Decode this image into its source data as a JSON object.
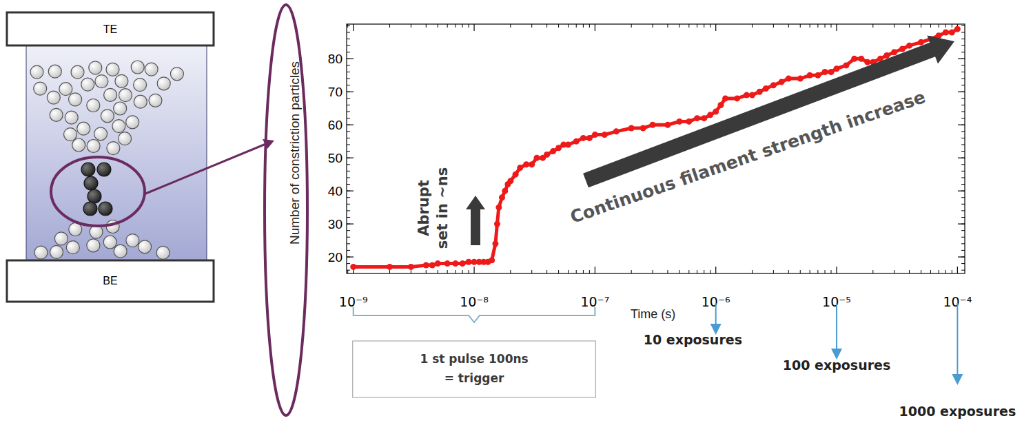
{
  "chart_data": {
    "type": "line",
    "marker": "circle",
    "color": "#ee1a1a",
    "y_label": "Number of constriction particles",
    "x_label": "Time (s)",
    "log": "x",
    "xlim": [
      8.8e-10,
      0.000115
    ],
    "ylim": [
      15,
      90.5
    ],
    "xticks": [
      {
        "value": 1e-09,
        "label": "10⁻⁹"
      },
      {
        "value": 1e-08,
        "label": "10⁻⁸"
      },
      {
        "value": 1e-07,
        "label": "10⁻⁷"
      },
      {
        "value": 1e-06,
        "label": "10⁻⁶"
      },
      {
        "value": 1e-05,
        "label": "10⁻⁵"
      },
      {
        "value": 0.0001,
        "label": "10⁻⁴"
      }
    ],
    "yticks": [
      20,
      30,
      40,
      50,
      60,
      70,
      80
    ],
    "x": [
      1e-09,
      2e-09,
      3e-09,
      4e-09,
      4.5e-09,
      5e-09,
      6e-09,
      7e-09,
      8e-09,
      9e-09,
      1e-08,
      1.1e-08,
      1.2e-08,
      1.3e-08,
      1.4e-08,
      1.5e-08,
      1.55e-08,
      1.6e-08,
      1.7e-08,
      1.8e-08,
      1.9e-08,
      2e-08,
      2.2e-08,
      2.4e-08,
      2.7e-08,
      3e-08,
      3.3e-08,
      3.7e-08,
      4e-08,
      4.5e-08,
      5e-08,
      5.5e-08,
      6e-08,
      7e-08,
      8e-08,
      9e-08,
      1e-07,
      1.2e-07,
      1.5e-07,
      2e-07,
      2.5e-07,
      3e-07,
      4e-07,
      5e-07,
      6e-07,
      7e-07,
      8e-07,
      9e-07,
      1e-06,
      1.1e-06,
      1.2e-06,
      1.5e-06,
      1.8e-06,
      2e-06,
      2.3e-06,
      2.6e-06,
      3e-06,
      3.5e-06,
      4e-06,
      5e-06,
      6e-06,
      7e-06,
      8e-06,
      9e-06,
      1e-05,
      1.2e-05,
      1.4e-05,
      1.6e-05,
      1.8e-05,
      2e-05,
      2.3e-05,
      2.6e-05,
      3e-05,
      3.5e-05,
      4e-05,
      5e-05,
      6e-05,
      7e-05,
      8e-05,
      9e-05,
      0.0001
    ],
    "values": [
      17,
      17,
      17,
      17.5,
      17.5,
      18,
      18,
      18,
      18,
      18.5,
      18.5,
      18.5,
      18.5,
      18.5,
      19,
      24,
      30,
      35,
      38,
      40,
      42,
      43,
      45,
      47,
      48,
      48,
      50,
      50,
      51,
      52,
      53,
      54,
      54,
      55,
      56,
      56,
      57,
      57,
      58,
      59,
      59,
      60,
      60,
      61,
      61,
      62,
      62,
      63,
      64,
      66,
      68,
      68,
      69,
      69,
      70,
      71,
      72,
      73,
      74,
      74,
      75,
      75,
      76,
      76,
      77,
      78,
      80,
      80,
      79,
      79,
      80,
      81,
      82,
      83,
      84,
      85,
      86,
      87,
      88,
      88,
      89
    ],
    "annotations": [
      {
        "lines": [
          "Abrupt",
          "set in ~ns"
        ]
      },
      {
        "text": "Continuous filament strength increase"
      }
    ],
    "bracket": {
      "lines": [
        "1 st pulse 100ns",
        "= trigger"
      ],
      "x": [
        1e-09,
        1e-07
      ]
    },
    "exposures": [
      {
        "text": "10 exposures",
        "x": 1e-06
      },
      {
        "text": "100 exposures",
        "x": 1e-05
      },
      {
        "text": "1000 exposures",
        "x": 0.0001
      }
    ]
  },
  "diagram": {
    "top_electrode": "TE",
    "bottom_electrode": "BE"
  }
}
